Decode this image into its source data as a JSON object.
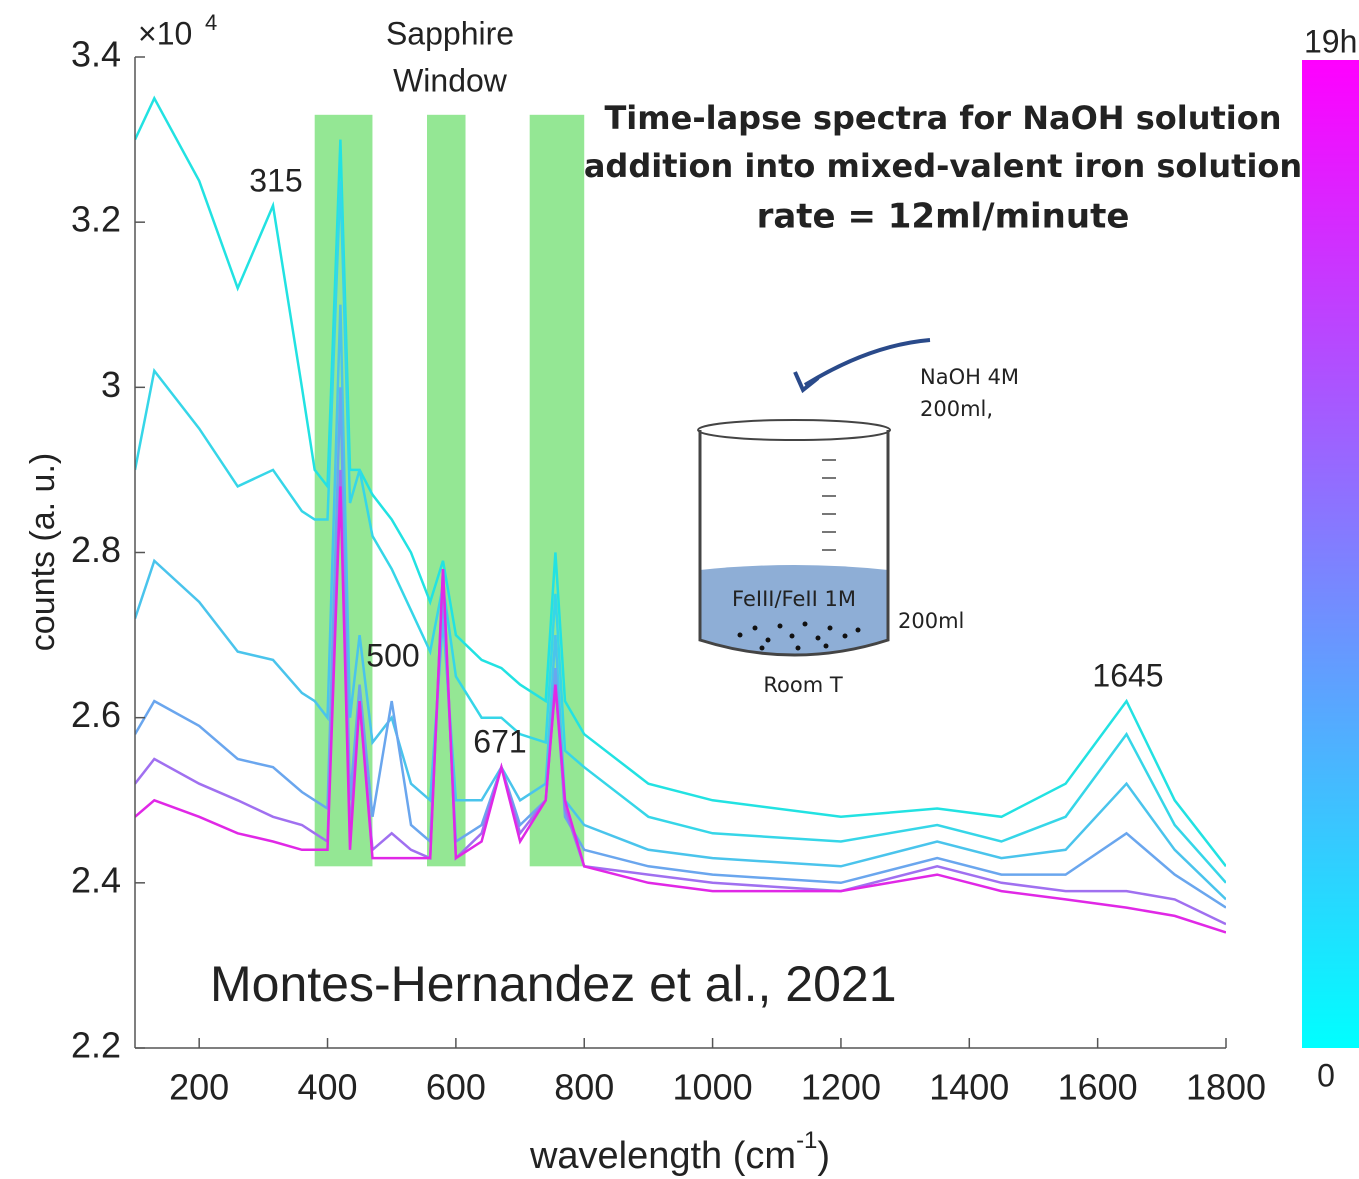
{
  "chart_data": {
    "type": "line",
    "title": [
      "Time-lapse spectra for NaOH solution",
      "addition into mixed-valent iron solution",
      "rate = 12ml/minute"
    ],
    "ylabel": "counts (a. u.)",
    "xlabel": [
      "wavelength (cm",
      "-1",
      ")"
    ],
    "y_multiplier": {
      "base": "×10",
      "exponent": "4"
    },
    "xlim": [
      100,
      1800
    ],
    "xticks": [
      200,
      400,
      600,
      800,
      1000,
      1200,
      1400,
      1600,
      1800
    ],
    "ylim": [
      2.2,
      3.4
    ],
    "yticks": [
      2.2,
      2.4,
      2.6,
      2.8,
      3,
      3.2,
      3.4
    ],
    "shade_label": [
      "Sapphire",
      "Window"
    ],
    "shade_color": "#66dd66",
    "shaded_regions": [
      [
        380,
        470
      ],
      [
        555,
        615
      ],
      [
        715,
        800
      ]
    ],
    "shade_ylim": [
      2.42,
      3.33
    ],
    "annotations": [
      "315",
      "500",
      "671",
      "1645"
    ],
    "citation": "Montes-Hernandez et al., 2021",
    "colorbar": {
      "labels": [
        "0",
        "19h"
      ],
      "colors": [
        "#00ffff",
        "#ff00ff"
      ]
    },
    "x": [
      100,
      130,
      200,
      260,
      315,
      360,
      380,
      400,
      420,
      435,
      450,
      470,
      500,
      530,
      560,
      580,
      600,
      640,
      671,
      700,
      740,
      755,
      770,
      800,
      900,
      1000,
      1200,
      1350,
      1450,
      1550,
      1645,
      1720,
      1800
    ],
    "series": [
      {
        "color": "#22e2e2",
        "values": [
          3.3,
          3.35,
          3.25,
          3.12,
          3.22,
          3.0,
          2.9,
          2.88,
          3.3,
          2.9,
          2.9,
          2.87,
          2.84,
          2.8,
          2.74,
          2.79,
          2.7,
          2.67,
          2.66,
          2.64,
          2.62,
          2.8,
          2.62,
          2.58,
          2.52,
          2.5,
          2.48,
          2.49,
          2.48,
          2.52,
          2.62,
          2.5,
          2.42
        ]
      },
      {
        "color": "#36d6e8",
        "values": [
          2.9,
          3.02,
          2.95,
          2.88,
          2.9,
          2.85,
          2.84,
          2.84,
          3.25,
          2.86,
          2.9,
          2.82,
          2.78,
          2.73,
          2.68,
          2.76,
          2.65,
          2.6,
          2.6,
          2.58,
          2.57,
          2.75,
          2.56,
          2.54,
          2.48,
          2.46,
          2.45,
          2.47,
          2.45,
          2.48,
          2.58,
          2.47,
          2.4
        ]
      },
      {
        "color": "#4ac4ec",
        "values": [
          2.72,
          2.79,
          2.74,
          2.68,
          2.67,
          2.63,
          2.62,
          2.6,
          3.1,
          2.6,
          2.7,
          2.57,
          2.6,
          2.52,
          2.5,
          2.72,
          2.5,
          2.5,
          2.54,
          2.5,
          2.52,
          2.7,
          2.5,
          2.47,
          2.44,
          2.43,
          2.42,
          2.45,
          2.43,
          2.44,
          2.52,
          2.44,
          2.38
        ]
      },
      {
        "color": "#6aa6ee",
        "values": [
          2.58,
          2.62,
          2.59,
          2.55,
          2.54,
          2.51,
          2.5,
          2.49,
          3.0,
          2.5,
          2.64,
          2.48,
          2.62,
          2.47,
          2.45,
          2.75,
          2.45,
          2.47,
          2.54,
          2.47,
          2.5,
          2.66,
          2.48,
          2.44,
          2.42,
          2.41,
          2.4,
          2.43,
          2.41,
          2.41,
          2.46,
          2.41,
          2.37
        ]
      },
      {
        "color": "#a070f0",
        "values": [
          2.52,
          2.55,
          2.52,
          2.5,
          2.48,
          2.47,
          2.46,
          2.45,
          2.9,
          2.46,
          2.62,
          2.44,
          2.46,
          2.44,
          2.43,
          2.78,
          2.43,
          2.46,
          2.54,
          2.46,
          2.5,
          2.64,
          2.49,
          2.42,
          2.41,
          2.4,
          2.39,
          2.42,
          2.4,
          2.39,
          2.39,
          2.38,
          2.35
        ]
      },
      {
        "color": "#e028e6",
        "values": [
          2.48,
          2.5,
          2.48,
          2.46,
          2.45,
          2.44,
          2.44,
          2.44,
          2.88,
          2.44,
          2.62,
          2.43,
          2.43,
          2.43,
          2.43,
          2.78,
          2.43,
          2.45,
          2.54,
          2.45,
          2.5,
          2.64,
          2.5,
          2.42,
          2.4,
          2.39,
          2.39,
          2.41,
          2.39,
          2.38,
          2.37,
          2.36,
          2.34
        ]
      }
    ]
  },
  "inset": {
    "reagent": "NaOH 4M",
    "reagent_volume": "200ml,",
    "solution": "FeIII/FeII 1M",
    "solution_volume": "200ml",
    "condition": "Room T"
  }
}
